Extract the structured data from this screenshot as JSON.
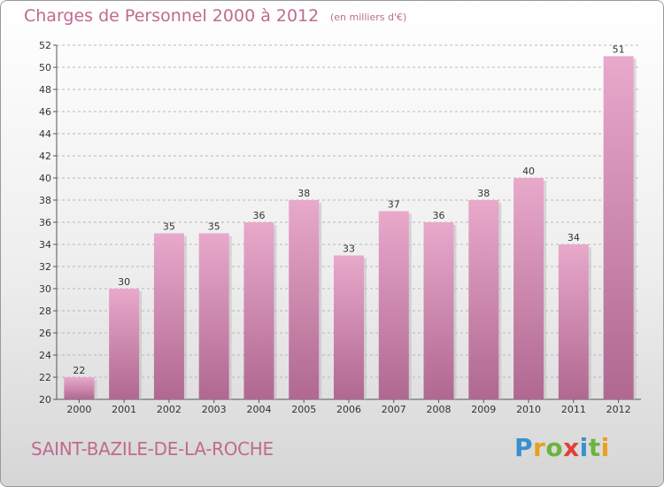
{
  "header": {
    "title": "Charges de Personnel 2000 à 2012",
    "subtitle": "(en milliers d'€)"
  },
  "footer": {
    "commune": "SAINT-BAZILE-DE-LA-ROCHE",
    "brand_letters": [
      "P",
      "r",
      "o",
      "x",
      "i",
      "t",
      "i"
    ],
    "brand_colors": [
      "#3a8fd0",
      "#e8a020",
      "#6cb33f",
      "#e0403a",
      "#3a8fd0",
      "#6cb33f",
      "#e8a020"
    ]
  },
  "colors": {
    "bar_top": "#e8a9cb",
    "bar_bottom": "#b06890",
    "title": "#c06a90",
    "grid": "#b8b8b8"
  },
  "chart_data": {
    "type": "bar",
    "categories": [
      "2000",
      "2001",
      "2002",
      "2003",
      "2004",
      "2005",
      "2006",
      "2007",
      "2008",
      "2009",
      "2010",
      "2011",
      "2012"
    ],
    "values": [
      22,
      30,
      35,
      35,
      36,
      38,
      33,
      37,
      36,
      38,
      40,
      34,
      51
    ],
    "ylim": [
      20,
      52
    ],
    "yticks": [
      20,
      22,
      24,
      26,
      28,
      30,
      32,
      34,
      36,
      38,
      40,
      42,
      44,
      46,
      48,
      50,
      52
    ],
    "grid": true,
    "grid_style": "dashed horizontal",
    "data_labels": true
  }
}
